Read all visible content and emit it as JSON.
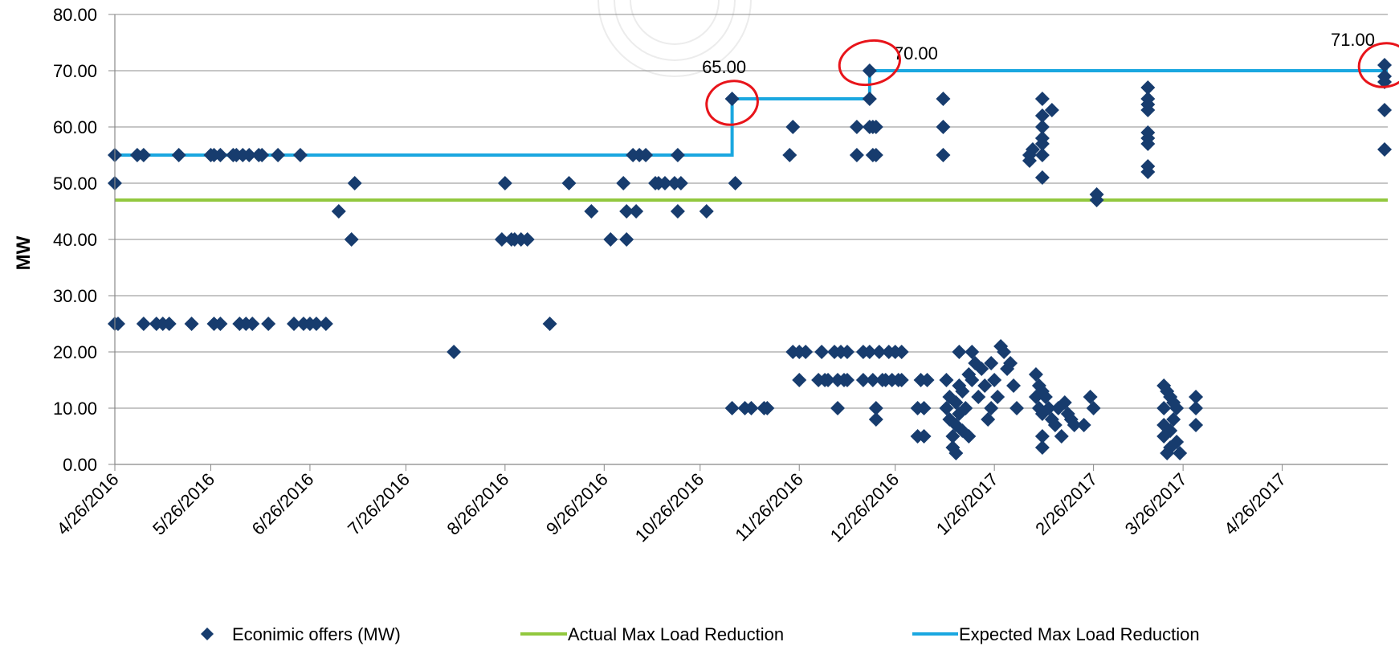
{
  "chart_data": {
    "type": "scatter",
    "ylabel": "MW",
    "ylim": [
      0,
      80
    ],
    "y_ticks": [
      "0.00",
      "10.00",
      "20.00",
      "30.00",
      "40.00",
      "50.00",
      "60.00",
      "70.00",
      "80.00"
    ],
    "x_range": [
      "4/26/2016",
      "5/29/2017"
    ],
    "x_ticks": [
      "4/26/2016",
      "5/26/2016",
      "6/26/2016",
      "7/26/2016",
      "8/26/2016",
      "9/26/2016",
      "10/26/2016",
      "11/26/2016",
      "12/26/2016",
      "1/26/2017",
      "2/26/2017",
      "3/26/2017",
      "4/26/2017"
    ],
    "grid": "horizontal",
    "legend_position": "bottom",
    "colors": {
      "offers": "#173c6e",
      "actual": "#92c83e",
      "expected": "#1aa7e0",
      "annotation_circle": "#e8141a",
      "axis": "#888888",
      "grid": "#8c8c8c"
    },
    "series": [
      {
        "name": "Econimic offers (MW)",
        "kind": "scatter",
        "points": [
          [
            "4/26/2016",
            55
          ],
          [
            "4/26/2016",
            50
          ],
          [
            "4/26/2016",
            25
          ],
          [
            "4/27/2016",
            25
          ],
          [
            "5/3/2016",
            55
          ],
          [
            "5/5/2016",
            55
          ],
          [
            "5/5/2016",
            25
          ],
          [
            "5/9/2016",
            25
          ],
          [
            "5/11/2016",
            25
          ],
          [
            "5/13/2016",
            25
          ],
          [
            "5/16/2016",
            55
          ],
          [
            "5/20/2016",
            25
          ],
          [
            "5/26/2016",
            55
          ],
          [
            "5/27/2016",
            55
          ],
          [
            "5/27/2016",
            25
          ],
          [
            "5/29/2016",
            25
          ],
          [
            "5/29/2016",
            55
          ],
          [
            "6/2/2016",
            55
          ],
          [
            "6/3/2016",
            55
          ],
          [
            "6/4/2016",
            25
          ],
          [
            "6/5/2016",
            55
          ],
          [
            "6/6/2016",
            25
          ],
          [
            "6/7/2016",
            55
          ],
          [
            "6/8/2016",
            25
          ],
          [
            "6/10/2016",
            55
          ],
          [
            "6/11/2016",
            55
          ],
          [
            "6/13/2016",
            25
          ],
          [
            "6/16/2016",
            55
          ],
          [
            "6/21/2016",
            25
          ],
          [
            "6/23/2016",
            55
          ],
          [
            "6/24/2016",
            25
          ],
          [
            "6/26/2016",
            25
          ],
          [
            "6/28/2016",
            25
          ],
          [
            "7/1/2016",
            25
          ],
          [
            "7/5/2016",
            45
          ],
          [
            "7/9/2016",
            40
          ],
          [
            "7/10/2016",
            50
          ],
          [
            "8/10/2016",
            20
          ],
          [
            "8/25/2016",
            40
          ],
          [
            "8/26/2016",
            50
          ],
          [
            "8/28/2016",
            40
          ],
          [
            "8/29/2016",
            40
          ],
          [
            "8/31/2016",
            40
          ],
          [
            "9/2/2016",
            40
          ],
          [
            "9/9/2016",
            25
          ],
          [
            "9/15/2016",
            50
          ],
          [
            "9/22/2016",
            45
          ],
          [
            "9/28/2016",
            40
          ],
          [
            "10/2/2016",
            50
          ],
          [
            "10/3/2016",
            40
          ],
          [
            "10/3/2016",
            45
          ],
          [
            "10/5/2016",
            55
          ],
          [
            "10/6/2016",
            45
          ],
          [
            "10/7/2016",
            55
          ],
          [
            "10/9/2016",
            55
          ],
          [
            "10/12/2016",
            50
          ],
          [
            "10/13/2016",
            50
          ],
          [
            "10/15/2016",
            50
          ],
          [
            "10/18/2016",
            50
          ],
          [
            "10/19/2016",
            55
          ],
          [
            "10/19/2016",
            45
          ],
          [
            "10/20/2016",
            50
          ],
          [
            "10/28/2016",
            45
          ],
          [
            "11/5/2016",
            65
          ],
          [
            "11/6/2016",
            50
          ],
          [
            "11/5/2016",
            10
          ],
          [
            "11/9/2016",
            10
          ],
          [
            "11/11/2016",
            10
          ],
          [
            "11/15/2016",
            10
          ],
          [
            "11/16/2016",
            10
          ],
          [
            "11/23/2016",
            55
          ],
          [
            "11/24/2016",
            60
          ],
          [
            "11/24/2016",
            20
          ],
          [
            "11/26/2016",
            15
          ],
          [
            "11/26/2016",
            20
          ],
          [
            "11/28/2016",
            20
          ],
          [
            "12/2/2016",
            15
          ],
          [
            "12/3/2016",
            20
          ],
          [
            "12/4/2016",
            15
          ],
          [
            "12/5/2016",
            15
          ],
          [
            "12/7/2016",
            20
          ],
          [
            "12/8/2016",
            10
          ],
          [
            "12/8/2016",
            15
          ],
          [
            "12/9/2016",
            20
          ],
          [
            "12/10/2016",
            15
          ],
          [
            "12/11/2016",
            15
          ],
          [
            "12/11/2016",
            20
          ],
          [
            "12/14/2016",
            55
          ],
          [
            "12/14/2016",
            60
          ],
          [
            "12/16/2016",
            20
          ],
          [
            "12/16/2016",
            15
          ],
          [
            "12/18/2016",
            65
          ],
          [
            "12/18/2016",
            70
          ],
          [
            "12/18/2016",
            60
          ],
          [
            "12/18/2016",
            20
          ],
          [
            "12/19/2016",
            55
          ],
          [
            "12/19/2016",
            60
          ],
          [
            "12/19/2016",
            15
          ],
          [
            "12/20/2016",
            55
          ],
          [
            "12/20/2016",
            60
          ],
          [
            "12/20/2016",
            10
          ],
          [
            "12/20/2016",
            8
          ],
          [
            "12/21/2016",
            20
          ],
          [
            "12/22/2016",
            15
          ],
          [
            "12/23/2016",
            15
          ],
          [
            "12/24/2016",
            20
          ],
          [
            "12/25/2016",
            15
          ],
          [
            "12/26/2016",
            20
          ],
          [
            "12/27/2016",
            15
          ],
          [
            "12/28/2016",
            20
          ],
          [
            "12/28/2016",
            15
          ],
          [
            "1/2/2017",
            10
          ],
          [
            "1/2/2017",
            5
          ],
          [
            "1/3/2017",
            15
          ],
          [
            "1/4/2017",
            5
          ],
          [
            "1/4/2017",
            10
          ],
          [
            "1/5/2017",
            15
          ],
          [
            "1/10/2017",
            65
          ],
          [
            "1/10/2017",
            60
          ],
          [
            "1/10/2017",
            55
          ],
          [
            "1/11/2017",
            15
          ],
          [
            "1/11/2017",
            10
          ],
          [
            "1/12/2017",
            12
          ],
          [
            "1/12/2017",
            8
          ],
          [
            "1/13/2017",
            5
          ],
          [
            "1/13/2017",
            3
          ],
          [
            "1/14/2017",
            2
          ],
          [
            "1/14/2017",
            7
          ],
          [
            "1/14/2017",
            11
          ],
          [
            "1/15/2017",
            20
          ],
          [
            "1/15/2017",
            14
          ],
          [
            "1/15/2017",
            9
          ],
          [
            "1/16/2017",
            6
          ],
          [
            "1/16/2017",
            13
          ],
          [
            "1/17/2017",
            10
          ],
          [
            "1/18/2017",
            16
          ],
          [
            "1/18/2017",
            5
          ],
          [
            "1/19/2017",
            20
          ],
          [
            "1/19/2017",
            15
          ],
          [
            "1/20/2017",
            18
          ],
          [
            "1/21/2017",
            12
          ],
          [
            "1/22/2017",
            17
          ],
          [
            "1/23/2017",
            14
          ],
          [
            "1/24/2017",
            8
          ],
          [
            "1/25/2017",
            18
          ],
          [
            "1/25/2017",
            10
          ],
          [
            "1/26/2017",
            15
          ],
          [
            "1/27/2017",
            12
          ],
          [
            "1/28/2017",
            21
          ],
          [
            "1/29/2017",
            20
          ],
          [
            "1/30/2017",
            17
          ],
          [
            "1/31/2017",
            18
          ],
          [
            "2/1/2017",
            14
          ],
          [
            "2/2/2017",
            10
          ],
          [
            "2/6/2017",
            55
          ],
          [
            "2/6/2017",
            54
          ],
          [
            "2/7/2017",
            56
          ],
          [
            "2/8/2017",
            16
          ],
          [
            "2/8/2017",
            12
          ],
          [
            "2/9/2017",
            14
          ],
          [
            "2/9/2017",
            10
          ],
          [
            "2/10/2017",
            65
          ],
          [
            "2/10/2017",
            62
          ],
          [
            "2/10/2017",
            60
          ],
          [
            "2/10/2017",
            58
          ],
          [
            "2/10/2017",
            57
          ],
          [
            "2/10/2017",
            55
          ],
          [
            "2/10/2017",
            51
          ],
          [
            "2/10/2017",
            13
          ],
          [
            "2/10/2017",
            9
          ],
          [
            "2/10/2017",
            5
          ],
          [
            "2/10/2017",
            3
          ],
          [
            "2/11/2017",
            12
          ],
          [
            "2/12/2017",
            10
          ],
          [
            "2/13/2017",
            63
          ],
          [
            "2/13/2017",
            8
          ],
          [
            "2/14/2017",
            7
          ],
          [
            "2/15/2017",
            10
          ],
          [
            "2/16/2017",
            5
          ],
          [
            "2/17/2017",
            11
          ],
          [
            "2/18/2017",
            9
          ],
          [
            "2/19/2017",
            8
          ],
          [
            "2/20/2017",
            7
          ],
          [
            "2/23/2017",
            7
          ],
          [
            "2/25/2017",
            12
          ],
          [
            "2/26/2017",
            10
          ],
          [
            "2/27/2017",
            47
          ],
          [
            "2/27/2017",
            48
          ],
          [
            "3/15/2017",
            67
          ],
          [
            "3/15/2017",
            65
          ],
          [
            "3/15/2017",
            64
          ],
          [
            "3/15/2017",
            63
          ],
          [
            "3/15/2017",
            59
          ],
          [
            "3/15/2017",
            58
          ],
          [
            "3/15/2017",
            57
          ],
          [
            "3/15/2017",
            53
          ],
          [
            "3/15/2017",
            52
          ],
          [
            "3/20/2017",
            14
          ],
          [
            "3/20/2017",
            10
          ],
          [
            "3/20/2017",
            7
          ],
          [
            "3/20/2017",
            5
          ],
          [
            "3/21/2017",
            2
          ],
          [
            "3/21/2017",
            13
          ],
          [
            "3/22/2017",
            12
          ],
          [
            "3/22/2017",
            6
          ],
          [
            "3/22/2017",
            3
          ],
          [
            "3/23/2017",
            11
          ],
          [
            "3/23/2017",
            8
          ],
          [
            "3/24/2017",
            10
          ],
          [
            "3/24/2017",
            4
          ],
          [
            "3/25/2017",
            2
          ],
          [
            "3/30/2017",
            12
          ],
          [
            "3/30/2017",
            10
          ],
          [
            "3/30/2017",
            7
          ],
          [
            "5/28/2017",
            71
          ],
          [
            "5/28/2017",
            69
          ],
          [
            "5/28/2017",
            68
          ],
          [
            "5/28/2017",
            63
          ],
          [
            "5/28/2017",
            56
          ]
        ]
      },
      {
        "name": "Actual Max Load Reduction",
        "kind": "line",
        "points": [
          [
            "4/26/2016",
            47
          ],
          [
            "5/29/2017",
            47
          ]
        ]
      },
      {
        "name": "Expected Max Load Reduction",
        "kind": "step",
        "points": [
          [
            "4/26/2016",
            55
          ],
          [
            "11/5/2016",
            55
          ],
          [
            "11/5/2016",
            65
          ],
          [
            "12/18/2016",
            65
          ],
          [
            "12/18/2016",
            70
          ],
          [
            "5/29/2017",
            70
          ]
        ]
      }
    ],
    "annotations": [
      {
        "text": "65.00",
        "x": "11/5/2016",
        "y": 65
      },
      {
        "text": "70.00",
        "x": "12/18/2016",
        "y": 70
      },
      {
        "text": "71.00",
        "x": "5/28/2017",
        "y": 71
      }
    ],
    "legend": [
      {
        "label": "Econimic offers (MW)",
        "symbol": "diamond",
        "series": 0
      },
      {
        "label": "Actual Max Load Reduction",
        "symbol": "line",
        "series": 1
      },
      {
        "label": "Expected Max Load Reduction",
        "symbol": "line",
        "series": 2
      }
    ]
  }
}
